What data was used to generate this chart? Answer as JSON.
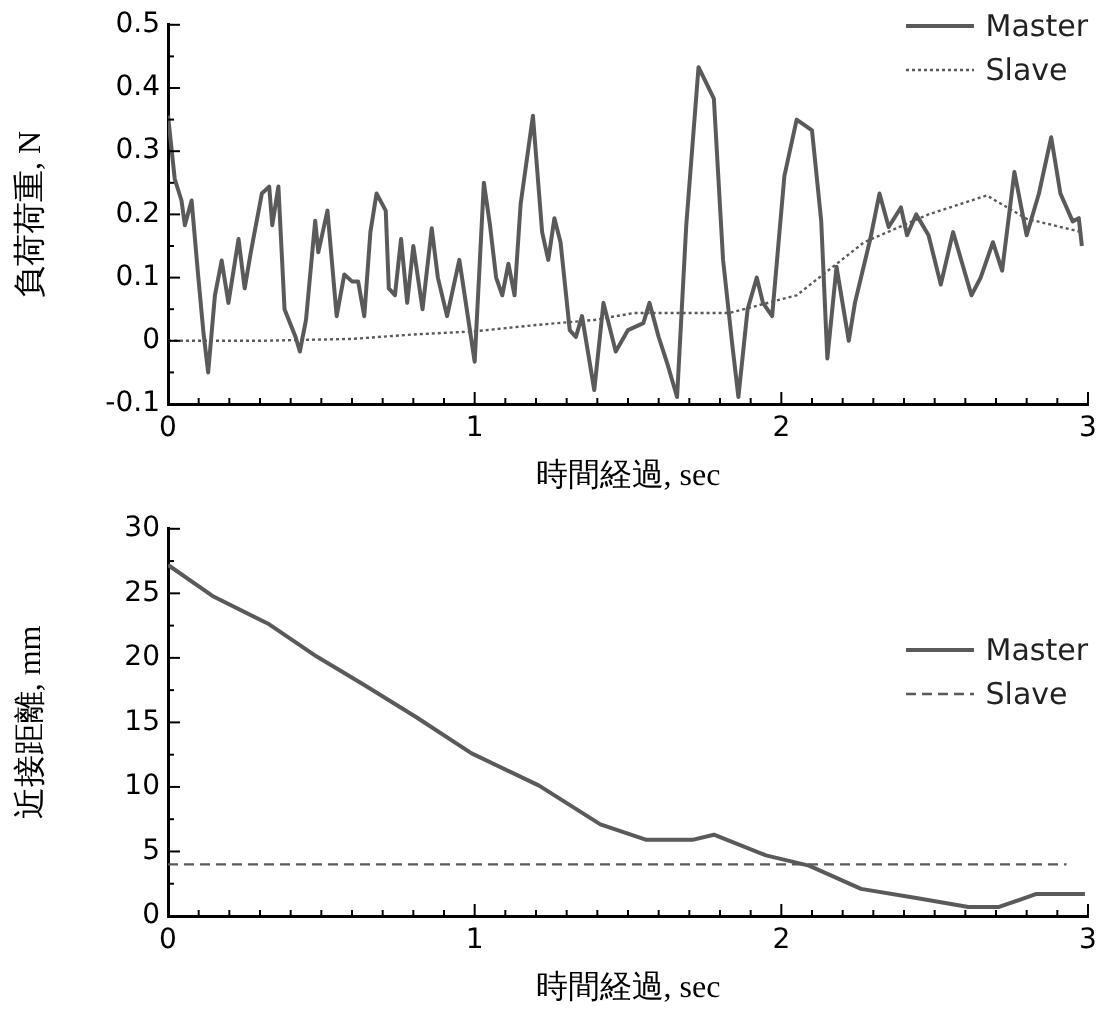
{
  "chart_data": [
    {
      "type": "line",
      "xlabel": "時間経過, sec",
      "ylabel": "負荷荷重, N",
      "grid": false,
      "legend": "top right",
      "marker": "none",
      "xlim": [
        0,
        3
      ],
      "xticks": [
        0,
        {
          "value": 0.1,
          "label": null
        },
        {
          "value": 0.2,
          "label": null
        },
        {
          "value": 0.3,
          "label": null
        },
        {
          "value": 0.4,
          "label": null
        },
        {
          "value": 0.5,
          "label": null
        },
        {
          "value": 0.6,
          "label": null
        },
        {
          "value": 0.7,
          "label": null
        },
        {
          "value": 0.8,
          "label": null
        },
        {
          "value": 0.9,
          "label": null
        },
        1,
        {
          "value": 1.1,
          "label": null
        },
        {
          "value": 1.2,
          "label": null
        },
        {
          "value": 1.3,
          "label": null
        },
        {
          "value": 1.4,
          "label": null
        },
        {
          "value": 1.5,
          "label": null
        },
        {
          "value": 1.6,
          "label": null
        },
        {
          "value": 1.7,
          "label": null
        },
        {
          "value": 1.8,
          "label": null
        },
        {
          "value": 1.9,
          "label": null
        },
        2,
        {
          "value": 2.1,
          "label": null
        },
        {
          "value": 2.2,
          "label": null
        },
        {
          "value": 2.3,
          "label": null
        },
        {
          "value": 2.4,
          "label": null
        },
        {
          "value": 2.5,
          "label": null
        },
        {
          "value": 2.6,
          "label": null
        },
        {
          "value": 2.7,
          "label": null
        },
        {
          "value": 2.8,
          "label": null
        },
        {
          "value": 2.9,
          "label": null
        },
        3
      ],
      "ylim": [
        -0.1,
        0.5
      ],
      "yticks": [
        -0.1,
        {
          "value": -0.05,
          "label": null
        },
        0,
        {
          "value": 0.05,
          "label": null
        },
        0.1,
        {
          "value": 0.15,
          "label": null
        },
        0.2,
        {
          "value": 0.25,
          "label": null
        },
        0.3,
        {
          "value": 0.35,
          "label": null
        },
        0.4,
        {
          "value": 0.45,
          "label": null
        },
        0.5
      ],
      "series": [
        {
          "name": "Master",
          "color": "#5a5a5a",
          "line_style": "solid",
          "x": [
            0,
            0.022,
            0.044,
            0.055,
            0.077,
            0.098,
            0.116,
            0.131,
            0.153,
            0.175,
            0.197,
            0.23,
            0.25,
            0.27,
            0.306,
            0.33,
            0.34,
            0.36,
            0.38,
            0.416,
            0.43,
            0.45,
            0.48,
            0.49,
            0.52,
            0.55,
            0.575,
            0.6,
            0.62,
            0.64,
            0.66,
            0.68,
            0.71,
            0.72,
            0.74,
            0.76,
            0.78,
            0.8,
            0.83,
            0.86,
            0.88,
            0.91,
            0.95,
            1.0,
            1.03,
            1.05,
            1.07,
            1.09,
            1.11,
            1.13,
            1.15,
            1.19,
            1.22,
            1.24,
            1.26,
            1.28,
            1.31,
            1.33,
            1.35,
            1.39,
            1.42,
            1.46,
            1.5,
            1.55,
            1.57,
            1.6,
            1.63,
            1.66,
            1.69,
            1.73,
            1.78,
            1.81,
            1.84,
            1.86,
            1.89,
            1.92,
            1.94,
            1.97,
            2.01,
            2.05,
            2.1,
            2.13,
            2.15,
            2.18,
            2.22,
            2.24,
            2.29,
            2.32,
            2.35,
            2.39,
            2.41,
            2.44,
            2.48,
            2.52,
            2.56,
            2.59,
            2.62,
            2.65,
            2.69,
            2.72,
            2.76,
            2.8,
            2.84,
            2.88,
            2.91,
            2.95,
            2.97,
            2.98
          ],
          "values": [
            0.356,
            0.256,
            0.222,
            0.183,
            0.222,
            0.105,
            0.011,
            -0.05,
            0.072,
            0.127,
            0.06,
            0.161,
            0.083,
            0.14,
            0.233,
            0.244,
            0.183,
            0.244,
            0.05,
            0.006,
            -0.017,
            0.033,
            0.19,
            0.14,
            0.206,
            0.039,
            0.105,
            0.094,
            0.094,
            0.039,
            0.172,
            0.233,
            0.206,
            0.083,
            0.072,
            0.161,
            0.06,
            0.15,
            0.05,
            0.178,
            0.1,
            0.039,
            0.128,
            -0.033,
            0.25,
            0.183,
            0.1,
            0.072,
            0.122,
            0.072,
            0.217,
            0.356,
            0.172,
            0.128,
            0.194,
            0.156,
            0.017,
            0.006,
            0.039,
            -0.078,
            0.06,
            -0.017,
            0.017,
            0.028,
            0.06,
            0.006,
            -0.039,
            -0.089,
            0.183,
            0.433,
            0.383,
            0.128,
            -0.006,
            -0.089,
            0.05,
            0.1,
            0.06,
            0.039,
            0.261,
            0.35,
            0.333,
            0.19,
            -0.028,
            0.117,
            0.0,
            0.06,
            0.161,
            0.233,
            0.18,
            0.211,
            0.167,
            0.2,
            0.167,
            0.089,
            0.172,
            0.122,
            0.072,
            0.1,
            0.156,
            0.111,
            0.267,
            0.167,
            0.233,
            0.322,
            0.233,
            0.189,
            0.194,
            0.15
          ]
        },
        {
          "name": "Slave",
          "color": "#5a5a5a",
          "line_style": "dotted",
          "x": [
            0,
            0.3,
            0.6,
            0.8,
            1.0,
            1.2,
            1.39,
            1.52,
            1.83,
            2.05,
            2.27,
            2.48,
            2.67,
            2.8,
            2.98
          ],
          "values": [
            0,
            0,
            0.003,
            0.01,
            0.015,
            0.025,
            0.033,
            0.044,
            0.044,
            0.072,
            0.156,
            0.2,
            0.23,
            0.193,
            0.172
          ]
        }
      ]
    },
    {
      "type": "line",
      "xlabel": "時間経過, sec",
      "ylabel": "近接距離, mm",
      "grid": false,
      "legend": "right",
      "marker": "none",
      "xlim": [
        0,
        3
      ],
      "xticks": [
        0,
        {
          "value": 0.1,
          "label": null
        },
        {
          "value": 0.2,
          "label": null
        },
        {
          "value": 0.3,
          "label": null
        },
        {
          "value": 0.4,
          "label": null
        },
        {
          "value": 0.5,
          "label": null
        },
        {
          "value": 0.6,
          "label": null
        },
        {
          "value": 0.7,
          "label": null
        },
        {
          "value": 0.8,
          "label": null
        },
        {
          "value": 0.9,
          "label": null
        },
        1,
        {
          "value": 1.1,
          "label": null
        },
        {
          "value": 1.2,
          "label": null
        },
        {
          "value": 1.3,
          "label": null
        },
        {
          "value": 1.4,
          "label": null
        },
        {
          "value": 1.5,
          "label": null
        },
        {
          "value": 1.6,
          "label": null
        },
        {
          "value": 1.7,
          "label": null
        },
        {
          "value": 1.8,
          "label": null
        },
        {
          "value": 1.9,
          "label": null
        },
        2,
        {
          "value": 2.1,
          "label": null
        },
        {
          "value": 2.2,
          "label": null
        },
        {
          "value": 2.3,
          "label": null
        },
        {
          "value": 2.4,
          "label": null
        },
        {
          "value": 2.5,
          "label": null
        },
        {
          "value": 2.6,
          "label": null
        },
        {
          "value": 2.7,
          "label": null
        },
        {
          "value": 2.8,
          "label": null
        },
        {
          "value": 2.9,
          "label": null
        },
        3
      ],
      "ylim": [
        0,
        30
      ],
      "yticks": [
        0,
        {
          "value": 2.5,
          "label": null
        },
        5,
        {
          "value": 7.5,
          "label": null
        },
        10,
        {
          "value": 12.5,
          "label": null
        },
        15,
        {
          "value": 17.5,
          "label": null
        },
        20,
        {
          "value": 22.5,
          "label": null
        },
        25,
        {
          "value": 27.5,
          "label": null
        },
        30
      ],
      "series": [
        {
          "name": "Master",
          "color": "#5a5a5a",
          "line_style": "solid",
          "x": [
            0,
            0.145,
            0.33,
            0.485,
            0.64,
            0.81,
            0.99,
            1.21,
            1.41,
            1.56,
            1.71,
            1.78,
            1.95,
            2.09,
            2.26,
            2.44,
            2.61,
            2.71,
            2.83,
            2.99
          ],
          "values": [
            27.2,
            24.8,
            22.6,
            20.1,
            17.9,
            15.4,
            12.6,
            10.1,
            7.1,
            5.9,
            5.9,
            6.3,
            4.7,
            3.9,
            2.1,
            1.4,
            0.7,
            0.7,
            1.7,
            1.7
          ]
        },
        {
          "name": "Slave",
          "color": "#5a5a5a",
          "line_style": "dashed",
          "x": [
            0,
            2.93
          ],
          "values": [
            4,
            4
          ]
        }
      ]
    }
  ]
}
